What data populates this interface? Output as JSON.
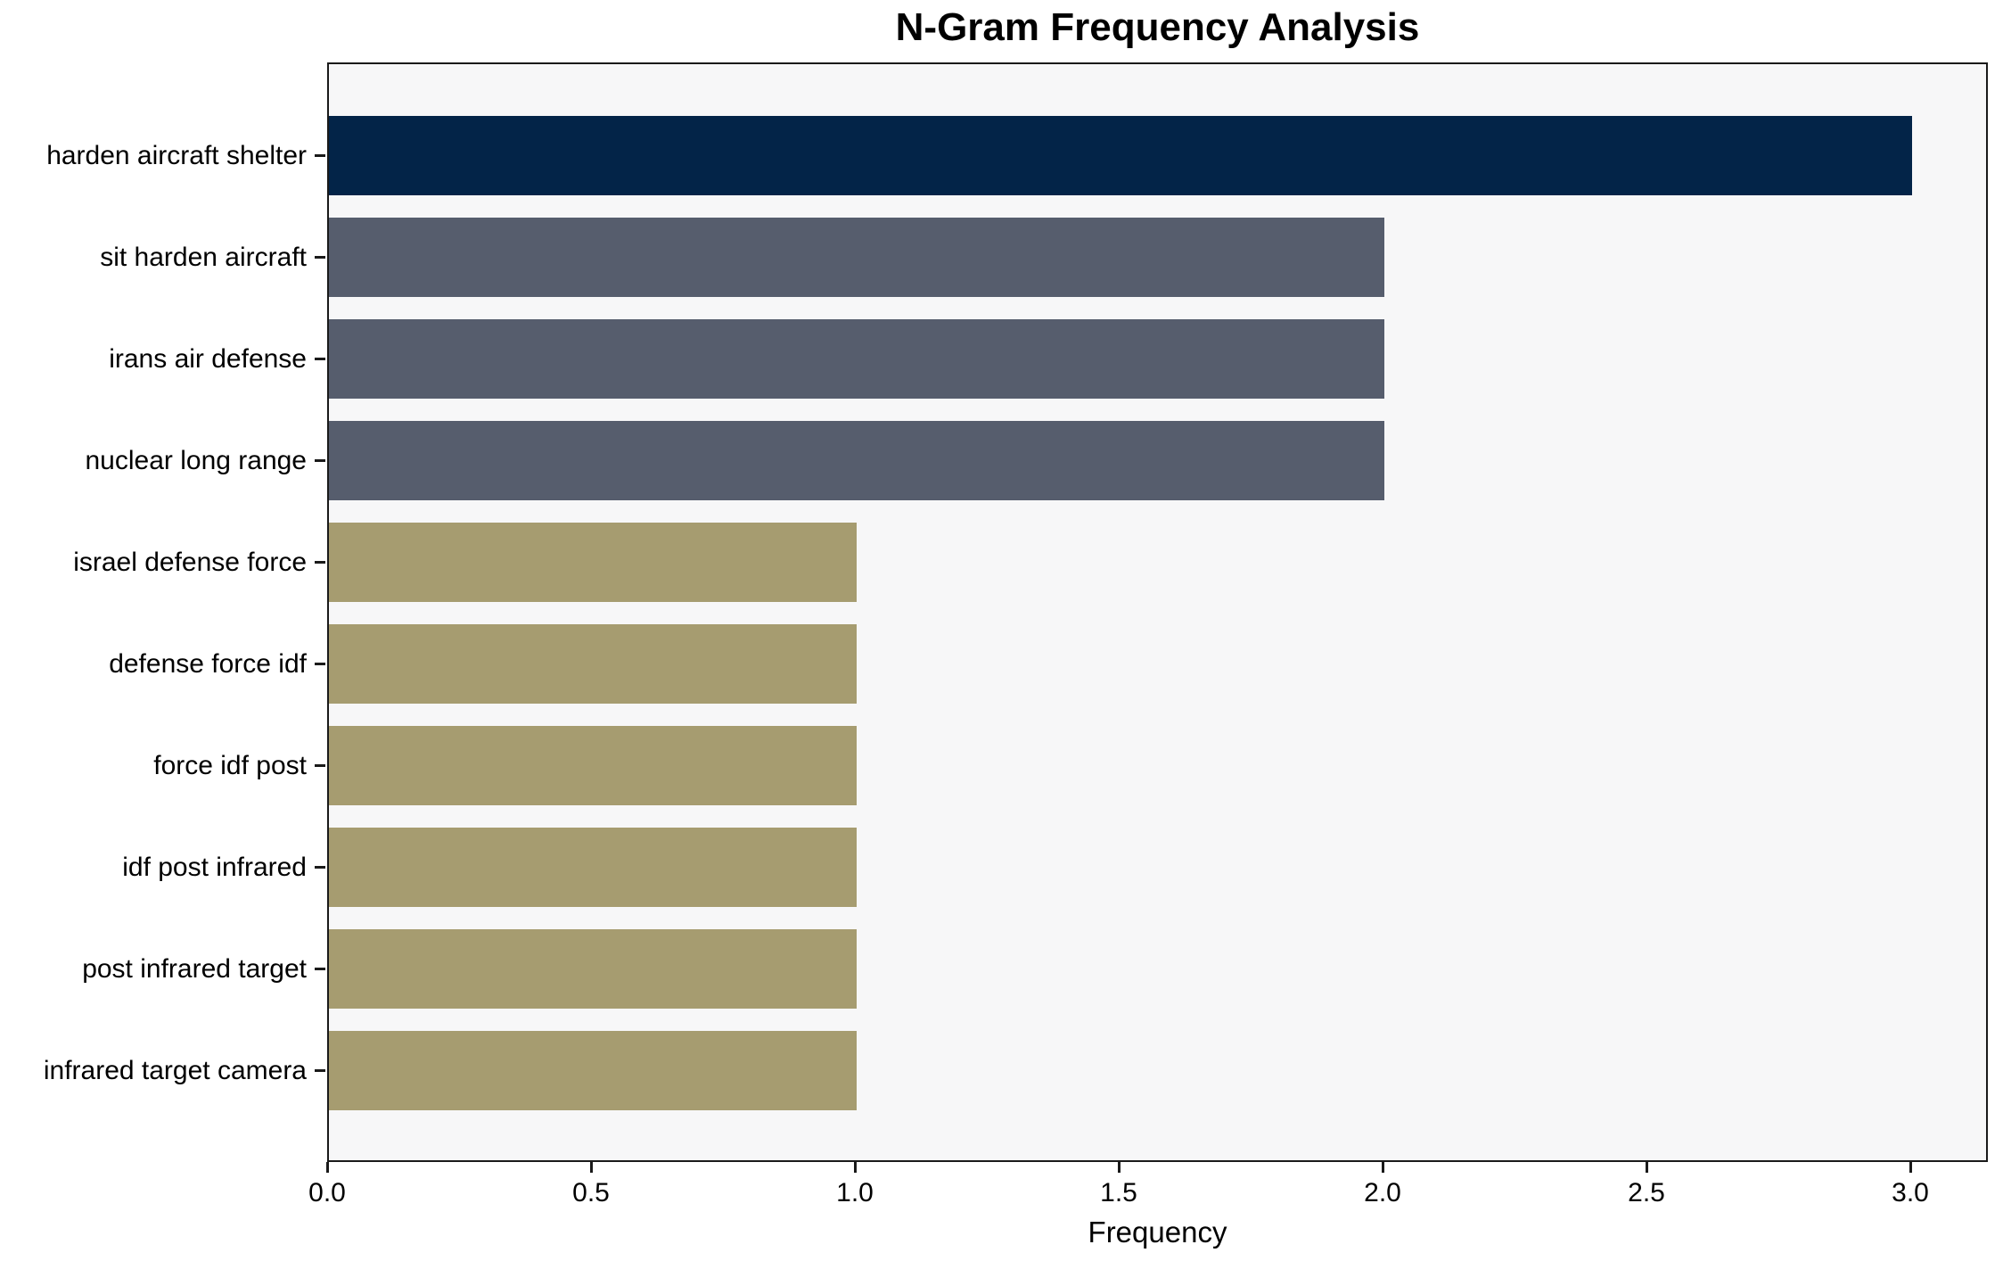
{
  "chart_data": {
    "type": "bar",
    "orientation": "horizontal",
    "title": "N-Gram Frequency Analysis",
    "xlabel": "Frequency",
    "ylabel": "",
    "categories": [
      "harden aircraft shelter",
      "sit harden aircraft",
      "irans air defense",
      "nuclear long range",
      "israel defense force",
      "defense force idf",
      "force idf post",
      "idf post infrared",
      "post infrared target",
      "infrared target camera"
    ],
    "values": [
      3,
      2,
      2,
      2,
      1,
      1,
      1,
      1,
      1,
      1
    ],
    "bar_colors": [
      "#032448",
      "#565d6d",
      "#565d6d",
      "#565d6d",
      "#a69c70",
      "#a69c70",
      "#a69c70",
      "#a69c70",
      "#a69c70",
      "#a69c70"
    ],
    "xlim": [
      0.0,
      3.15
    ],
    "xticks": [
      0.0,
      0.5,
      1.0,
      1.5,
      2.0,
      2.5,
      3.0
    ],
    "xtick_labels": [
      "0.0",
      "0.5",
      "1.0",
      "1.5",
      "2.0",
      "2.5",
      "3.0"
    ],
    "grid": false,
    "legend": null,
    "plot_background": "#f7f7f8",
    "page_background": "#ffffff",
    "spine_color": "#1a1a1a"
  }
}
